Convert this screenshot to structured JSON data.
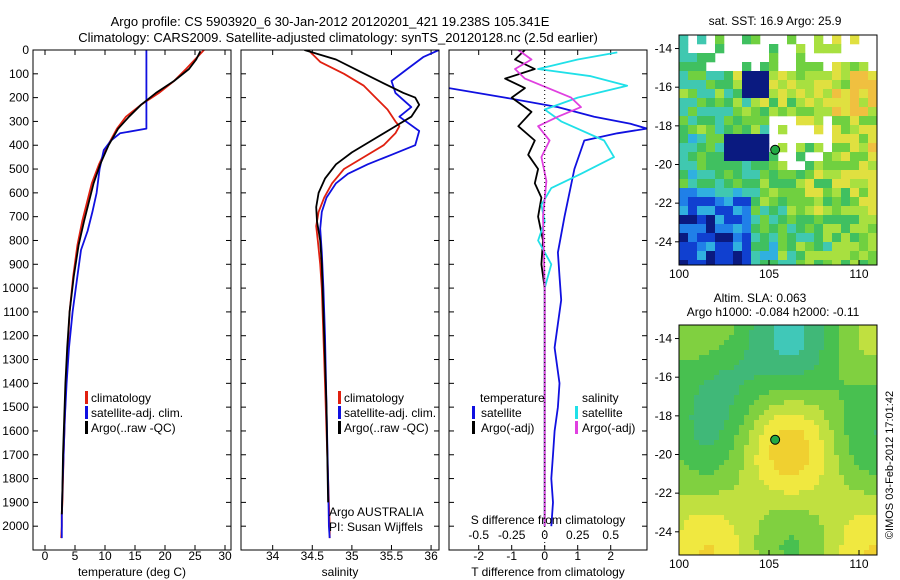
{
  "header": {
    "title_line1": "Argo profile: CS 5903920_6 30-Jan-2012 20120201_421 19.238S 105.341E",
    "title_line2": "Climatology: CARS2009. Satellite-adjusted climatology: synTS_20120128.nc (2.5d earlier)"
  },
  "side_text": "©IMOS 03-Feb-2012 17:01:42",
  "colors": {
    "climatology": "#e02010",
    "satellite": "#1010e0",
    "argo": "#000000",
    "cyan": "#20e0e8",
    "magenta": "#e040e0"
  },
  "chart_data": [
    {
      "id": "temperature",
      "type": "line",
      "xlabel": "temperature (deg C)",
      "ylabel": "",
      "xlim": [
        -2,
        31
      ],
      "ylim": [
        2100,
        0
      ],
      "xticks": [
        0,
        5,
        10,
        15,
        20,
        25,
        30
      ],
      "yticks": [
        0,
        100,
        200,
        300,
        400,
        500,
        600,
        700,
        800,
        900,
        1000,
        1100,
        1200,
        1300,
        1400,
        1500,
        1600,
        1700,
        1800,
        1900,
        2000
      ],
      "legend": [
        "climatology",
        "satellite-adj. clim.",
        "Argo(..raw -QC)"
      ],
      "legend_position": "lower-left",
      "series": [
        {
          "name": "climatology",
          "color": "#e02010",
          "x": [
            26.5,
            25,
            23.5,
            21.5,
            19,
            16,
            13.5,
            12,
            10.5,
            9,
            7.8,
            7,
            6.2,
            5.4,
            4.7,
            4.1,
            3.8,
            3.5,
            3.3,
            3.1,
            3.0,
            2.9,
            2.8,
            2.8,
            2.7
          ],
          "y": [
            0,
            40,
            80,
            130,
            180,
            230,
            280,
            330,
            400,
            480,
            560,
            640,
            720,
            820,
            950,
            1100,
            1250,
            1400,
            1550,
            1700,
            1800,
            1900,
            1950,
            2000,
            2050
          ]
        },
        {
          "name": "satellite-adj. clim.",
          "color": "#1010e0",
          "x": [
            16.9,
            16.9,
            16.9,
            16.9,
            16.9,
            12.5,
            11,
            9.8,
            9.1,
            8.6,
            7.9,
            7.1,
            6.0,
            5.4,
            4.6,
            4.0,
            3.6,
            3.3,
            3.1,
            2.9,
            2.8,
            2.8,
            2.8
          ],
          "y": [
            0,
            100,
            200,
            300,
            330,
            350,
            380,
            420,
            500,
            600,
            680,
            760,
            840,
            950,
            1100,
            1250,
            1400,
            1550,
            1700,
            1850,
            1950,
            2000,
            2050
          ]
        },
        {
          "name": "Argo(..raw -QC)",
          "color": "#000000",
          "x": [
            25.9,
            25.2,
            24,
            21.5,
            18.5,
            16,
            14,
            12.2,
            10.6,
            9.2,
            8.1,
            7.3,
            6.5,
            5.6,
            4.8,
            4.1,
            3.7,
            3.4,
            3.2,
            3.0,
            2.9,
            2.8
          ],
          "y": [
            5,
            40,
            80,
            130,
            180,
            230,
            280,
            330,
            400,
            480,
            560,
            640,
            720,
            820,
            950,
            1100,
            1250,
            1400,
            1550,
            1700,
            1850,
            1950
          ]
        }
      ]
    },
    {
      "id": "salinity",
      "type": "line",
      "xlabel": "salinity",
      "ylabel": "",
      "xlim": [
        33.6,
        36.1
      ],
      "ylim": [
        2100,
        0
      ],
      "xticks": [
        34,
        34.5,
        35,
        35.5,
        36
      ],
      "legend": [
        "climatology",
        "satellite-adj. clim.",
        "Argo(..raw -QC)"
      ],
      "legend_position": "lower-right",
      "annotations": [
        "Argo AUSTRALIA",
        "PI: Susan Wijffels"
      ],
      "series": [
        {
          "name": "climatology",
          "color": "#e02010",
          "x": [
            34.45,
            34.6,
            34.9,
            35.15,
            35.3,
            35.45,
            35.55,
            35.6,
            35.55,
            35.4,
            35.15,
            34.9,
            34.75,
            34.65,
            34.58,
            34.55,
            34.57,
            34.6,
            34.62,
            34.64,
            34.66,
            34.68,
            34.7,
            34.71,
            34.72,
            34.72
          ],
          "y": [
            0,
            50,
            100,
            150,
            200,
            250,
            300,
            320,
            350,
            400,
            450,
            500,
            560,
            620,
            680,
            740,
            800,
            900,
            1000,
            1200,
            1400,
            1600,
            1800,
            1900,
            2000,
            2050
          ]
        },
        {
          "name": "satellite-adj. clim.",
          "color": "#1010e0",
          "x": [
            36.1,
            35.9,
            35.7,
            35.5,
            35.55,
            35.75,
            35.6,
            35.85,
            35.8,
            35.5,
            35.2,
            34.95,
            34.8,
            34.68,
            34.62,
            34.6,
            34.62,
            34.64,
            34.66,
            34.68,
            34.7,
            34.71,
            34.72
          ],
          "y": [
            0,
            30,
            80,
            130,
            180,
            240,
            280,
            340,
            400,
            440,
            480,
            520,
            560,
            620,
            680,
            750,
            850,
            1000,
            1200,
            1500,
            1800,
            2000,
            2050
          ]
        },
        {
          "name": "Argo(..raw -QC)",
          "color": "#000000",
          "x": [
            34.4,
            34.8,
            35.1,
            35.4,
            35.65,
            35.8,
            35.85,
            35.75,
            35.5,
            35.25,
            35.0,
            34.8,
            34.66,
            34.58,
            34.55,
            34.56,
            34.6,
            34.62,
            34.64,
            34.66,
            34.68,
            34.69,
            34.7
          ],
          "y": [
            0,
            40,
            90,
            140,
            180,
            200,
            230,
            280,
            330,
            380,
            430,
            480,
            540,
            600,
            660,
            720,
            800,
            900,
            1100,
            1300,
            1500,
            1700,
            1900
          ]
        }
      ]
    },
    {
      "id": "difference",
      "type": "line",
      "xlabel": "T difference from climatology",
      "xlabel_top": "S difference from climatology",
      "xlim": [
        -2.9,
        3.1
      ],
      "ylim": [
        2100,
        0
      ],
      "xticks": [
        -2,
        -1,
        0,
        1,
        2
      ],
      "s_xticks": [
        "-0.5",
        "-0.25",
        "0",
        "0.25",
        "0.5"
      ],
      "s_xtick_values": [
        -2,
        -1,
        0,
        1,
        2
      ],
      "legend_left": {
        "title": "temperature",
        "items": [
          "satellite",
          "Argo(-adj)"
        ]
      },
      "legend_right": {
        "title": "salinity",
        "items": [
          "satellite",
          "Argo(-adj)"
        ]
      },
      "series": [
        {
          "name": "temperature satellite",
          "color": "#1010e0",
          "x": [
            -2.9,
            -1.2,
            0.4,
            1.5,
            2.6,
            3.1,
            2.2,
            1.2,
            0.9,
            0.6,
            0.4,
            0.45,
            0.5,
            0.3,
            0.45,
            0.4,
            0.3,
            0.25,
            0.2,
            0.25,
            0.2
          ],
          "y": [
            160,
            200,
            240,
            280,
            310,
            330,
            350,
            380,
            500,
            700,
            850,
            950,
            1050,
            1250,
            1400,
            1500,
            1600,
            1700,
            1800,
            1900,
            2000
          ]
        },
        {
          "name": "temperature Argo(-adj)",
          "color": "#000000",
          "x": [
            -0.6,
            -0.9,
            -0.3,
            -1.2,
            -0.6,
            -1.0,
            -0.4,
            -0.8,
            -0.3,
            -0.5,
            -0.2,
            -0.3,
            -0.1,
            -0.2,
            -0.05,
            -0.1,
            0,
            0,
            0
          ],
          "y": [
            0,
            40,
            80,
            120,
            160,
            200,
            260,
            320,
            380,
            440,
            500,
            560,
            620,
            700,
            800,
            900,
            1000,
            1500,
            2000
          ]
        },
        {
          "name": "salinity satellite",
          "color": "#20e0e8",
          "x": [
            2.2,
            1.0,
            -0.2,
            1.4,
            2.5,
            1.0,
            0,
            0.5,
            1.8,
            2.1,
            1.1,
            0.2,
            -0.1,
            0,
            -0.2,
            0.2,
            0,
            0,
            0
          ],
          "y": [
            10,
            40,
            80,
            110,
            150,
            200,
            250,
            300,
            380,
            450,
            520,
            580,
            650,
            720,
            800,
            900,
            1000,
            1500,
            2000
          ]
        },
        {
          "name": "salinity Argo(-adj)",
          "color": "#e040e0",
          "x": [
            -0.8,
            -0.4,
            -0.9,
            -0.6,
            0.1,
            0.8,
            1.1,
            0.4,
            -0.2,
            0.15,
            -0.1,
            0.05,
            -0.05,
            0,
            0
          ],
          "y": [
            0,
            40,
            80,
            120,
            160,
            200,
            240,
            280,
            320,
            380,
            450,
            550,
            700,
            1000,
            2000
          ]
        }
      ]
    },
    {
      "id": "sst-map",
      "type": "heatmap",
      "title": "sat. SST: 16.9  Argo: 25.9",
      "xlim": [
        100,
        111
      ],
      "ylim": [
        -25.2,
        -13.3
      ],
      "xticks": [
        100,
        105,
        110
      ],
      "yticks": [
        -24,
        -22,
        -20,
        -18,
        -16,
        -14
      ],
      "marker": {
        "lon": 105.341,
        "lat": -19.238
      }
    },
    {
      "id": "sla-map",
      "type": "heatmap",
      "title": "Altim. SLA: 0.063",
      "subtitle": "Argo h1000: -0.084  h2000: -0.11",
      "xlim": [
        100,
        111
      ],
      "ylim": [
        -25.2,
        -13.3
      ],
      "xticks": [
        100,
        105,
        110
      ],
      "yticks": [
        -24,
        -22,
        -20,
        -18,
        -16,
        -14
      ],
      "marker": {
        "lon": 105.341,
        "lat": -19.238
      }
    }
  ]
}
